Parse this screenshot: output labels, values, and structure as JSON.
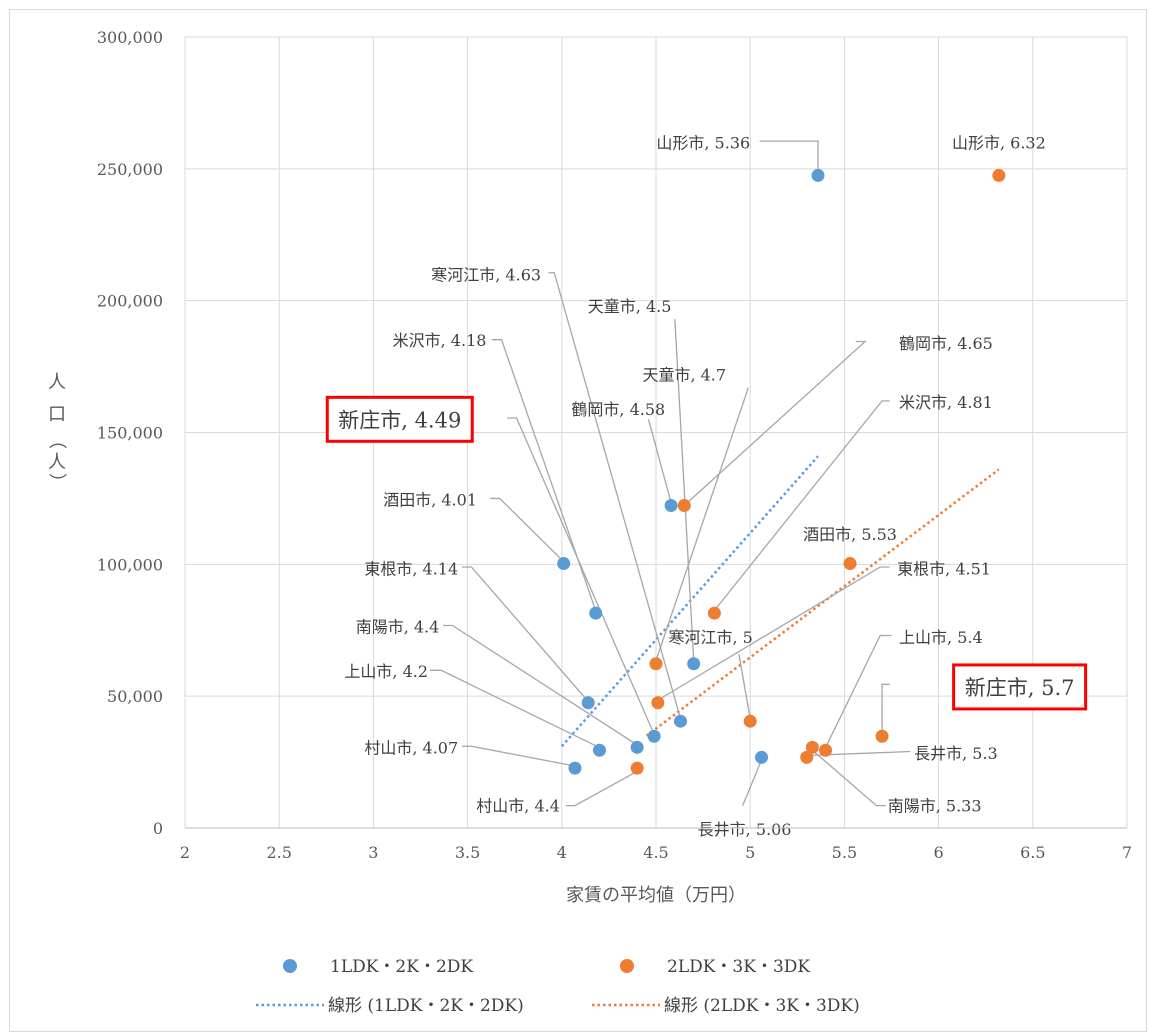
{
  "chart_data": {
    "type": "scatter",
    "xlabel": "家賃の平均値（万円）",
    "ylabel": [
      "人",
      "口",
      "（",
      "人",
      "）"
    ],
    "xlim": [
      2,
      7
    ],
    "ylim": [
      0,
      300000
    ],
    "x_ticks": [
      "2",
      "2.5",
      "3",
      "3.5",
      "4",
      "4.5",
      "5",
      "5.5",
      "6",
      "6.5",
      "7"
    ],
    "y_ticks": [
      "0",
      "50,000",
      "100,000",
      "150,000",
      "200,000",
      "250,000",
      "300,000"
    ],
    "grid": true,
    "legend_position": "bottom",
    "series": [
      {
        "name": "1LDK・2K・2DK",
        "color": "#5b9bd5",
        "points": [
          {
            "city": "山形市",
            "x": 5.36,
            "y": 247500
          },
          {
            "city": "鶴岡市",
            "x": 4.58,
            "y": 122300
          },
          {
            "city": "酒田市",
            "x": 4.01,
            "y": 100300
          },
          {
            "city": "米沢市",
            "x": 4.18,
            "y": 81500
          },
          {
            "city": "天童市",
            "x": 4.7,
            "y": 62300
          },
          {
            "city": "東根市",
            "x": 4.14,
            "y": 47500
          },
          {
            "city": "新庄市",
            "x": 4.49,
            "y": 34800
          },
          {
            "city": "寒河江市",
            "x": 4.63,
            "y": 40500
          },
          {
            "city": "南陽市",
            "x": 4.4,
            "y": 30600
          },
          {
            "city": "上山市",
            "x": 4.2,
            "y": 29500
          },
          {
            "city": "長井市",
            "x": 5.06,
            "y": 26800
          },
          {
            "city": "村山市",
            "x": 4.07,
            "y": 22700
          }
        ]
      },
      {
        "name": "2LDK・3K・3DK",
        "color": "#ed7d31",
        "points": [
          {
            "city": "山形市",
            "x": 6.32,
            "y": 247500
          },
          {
            "city": "鶴岡市",
            "x": 4.65,
            "y": 122300
          },
          {
            "city": "酒田市",
            "x": 5.53,
            "y": 100300
          },
          {
            "city": "米沢市",
            "x": 4.81,
            "y": 81500
          },
          {
            "city": "天童市",
            "x": 4.5,
            "y": 62300
          },
          {
            "city": "東根市",
            "x": 4.51,
            "y": 47500
          },
          {
            "city": "新庄市",
            "x": 5.7,
            "y": 34800
          },
          {
            "city": "寒河江市",
            "x": 5.0,
            "y": 40500
          },
          {
            "city": "南陽市",
            "x": 5.33,
            "y": 30600
          },
          {
            "city": "上山市",
            "x": 5.4,
            "y": 29500
          },
          {
            "city": "長井市",
            "x": 5.3,
            "y": 26800
          },
          {
            "city": "村山市",
            "x": 4.4,
            "y": 22700
          }
        ]
      }
    ],
    "trendlines": [
      {
        "name": "線形 (1LDK・2K・2DK)",
        "color": "#5b9bd5",
        "from": [
          4.0,
          31000
        ],
        "to": [
          5.36,
          141000
        ]
      },
      {
        "name": "線形 (2LDK・3K・3DK)",
        "color": "#ed7d31",
        "from": [
          4.45,
          35000
        ],
        "to": [
          6.32,
          136000
        ]
      }
    ],
    "labels": [
      {
        "text": "山形市, 5.36",
        "lx": 5.0,
        "ly": 260000,
        "anchor": "end",
        "leader": [
          [
            5.05,
            260500
          ],
          [
            5.36,
            260500
          ],
          [
            5.36,
            249000
          ]
        ]
      },
      {
        "text": "山形市, 6.32",
        "lx": 6.32,
        "ly": 260000,
        "anchor": "middle",
        "leader": []
      },
      {
        "text": "寒河江市, 4.63",
        "lx": 3.89,
        "ly": 210000,
        "anchor": "end",
        "leader": [
          [
            3.93,
            210600
          ],
          [
            3.96,
            210600
          ],
          [
            4.63,
            41500
          ]
        ]
      },
      {
        "text": "天童市, 4.5",
        "lx": 4.36,
        "ly": 198000,
        "anchor": "middle",
        "leader": [
          [
            4.6,
            193000
          ],
          [
            4.7,
            63500
          ]
        ]
      },
      {
        "text": "米沢市, 4.18",
        "lx": 3.6,
        "ly": 185000,
        "anchor": "end",
        "leader": [
          [
            3.63,
            185200
          ],
          [
            3.68,
            185200
          ],
          [
            4.18,
            82500
          ]
        ]
      },
      {
        "text": "天童市, 4.7",
        "lx": 4.65,
        "ly": 172000,
        "anchor": "middle",
        "leader": [
          [
            4.99,
            167000
          ],
          [
            4.5,
            63500
          ]
        ]
      },
      {
        "text": "鶴岡市, 4.65",
        "lx": 5.79,
        "ly": 184000,
        "anchor": "start",
        "leader": [
          [
            5.56,
            184500
          ],
          [
            5.61,
            184500
          ],
          [
            4.65,
            122300
          ]
        ]
      },
      {
        "text": "鶴岡市, 4.58",
        "lx": 4.3,
        "ly": 159000,
        "anchor": "middle",
        "leader": [
          [
            4.46,
            155000
          ],
          [
            4.58,
            123500
          ]
        ]
      },
      {
        "text": "米沢市, 4.81",
        "lx": 5.79,
        "ly": 161500,
        "anchor": "start",
        "leader": [
          [
            5.74,
            162000
          ],
          [
            5.7,
            162000
          ],
          [
            4.81,
            82500
          ]
        ]
      },
      {
        "text": "酒田市, 4.01",
        "lx": 3.55,
        "ly": 124500,
        "anchor": "end",
        "leader": [
          [
            3.62,
            125000
          ],
          [
            3.67,
            125000
          ],
          [
            4.01,
            101000
          ]
        ]
      },
      {
        "text": "酒田市, 5.53",
        "lx": 5.53,
        "ly": 111500,
        "anchor": "middle",
        "leader": []
      },
      {
        "text": "東根市, 4.51",
        "lx": 5.78,
        "ly": 98500,
        "anchor": "start",
        "leader": [
          [
            5.74,
            99000
          ],
          [
            5.69,
            99000
          ],
          [
            4.51,
            48500
          ]
        ]
      },
      {
        "text": "東根市, 4.14",
        "lx": 3.45,
        "ly": 98500,
        "anchor": "end",
        "leader": [
          [
            3.47,
            99000
          ],
          [
            3.52,
            99000
          ],
          [
            4.14,
            48000
          ]
        ]
      },
      {
        "text": "南陽市, 4.4",
        "lx": 3.35,
        "ly": 76500,
        "anchor": "end",
        "leader": [
          [
            3.37,
            76800
          ],
          [
            3.42,
            76800
          ],
          [
            4.4,
            31500
          ]
        ]
      },
      {
        "text": "寒河江市, 5",
        "lx": 4.79,
        "ly": 72500,
        "anchor": "middle",
        "leader": [
          [
            4.94,
            66000
          ],
          [
            5.0,
            41500
          ]
        ]
      },
      {
        "text": "上山市, 5.4",
        "lx": 5.79,
        "ly": 72500,
        "anchor": "start",
        "leader": [
          [
            5.75,
            73000
          ],
          [
            5.69,
            73000
          ],
          [
            5.4,
            30500
          ]
        ]
      },
      {
        "text": "上山市, 4.2",
        "lx": 3.29,
        "ly": 59500,
        "anchor": "end",
        "leader": [
          [
            3.3,
            59800
          ],
          [
            3.36,
            59800
          ],
          [
            4.2,
            30500
          ]
        ]
      },
      {
        "text": "村山市, 4.07",
        "lx": 3.45,
        "ly": 30500,
        "anchor": "end",
        "leader": [
          [
            3.47,
            31000
          ],
          [
            3.52,
            31000
          ],
          [
            4.07,
            23500
          ]
        ]
      },
      {
        "text": "長井市, 5.3",
        "lx": 5.87,
        "ly": 28500,
        "anchor": "start",
        "leader": [
          [
            5.85,
            29000
          ],
          [
            5.3,
            27500
          ]
        ]
      },
      {
        "text": "村山市, 4.4",
        "lx": 3.99,
        "ly": 8500,
        "anchor": "end",
        "leader": [
          [
            4.02,
            8500
          ],
          [
            4.07,
            8500
          ],
          [
            4.4,
            21500
          ]
        ]
      },
      {
        "text": "南陽市, 5.33",
        "lx": 5.73,
        "ly": 8500,
        "anchor": "start",
        "leader": [
          [
            5.72,
            8500
          ],
          [
            5.67,
            8500
          ],
          [
            5.33,
            29500
          ]
        ]
      },
      {
        "text": "長井市, 5.06",
        "lx": 4.97,
        "ly": -400,
        "anchor": "middle",
        "leader": [
          [
            4.96,
            8500
          ],
          [
            5.06,
            25800
          ]
        ]
      }
    ],
    "highlight_labels": [
      {
        "text": "新庄市, 4.49",
        "cx": 3.14,
        "cy": 155000,
        "leader": [
          [
            3.71,
            155500
          ],
          [
            3.76,
            155500
          ],
          [
            4.49,
            35500
          ]
        ]
      },
      {
        "text": "新庄市, 5.7",
        "cx": 6.43,
        "cy": 53500,
        "leader": [
          [
            5.74,
            54500
          ],
          [
            5.7,
            54500
          ],
          [
            5.7,
            35800
          ]
        ]
      }
    ]
  }
}
